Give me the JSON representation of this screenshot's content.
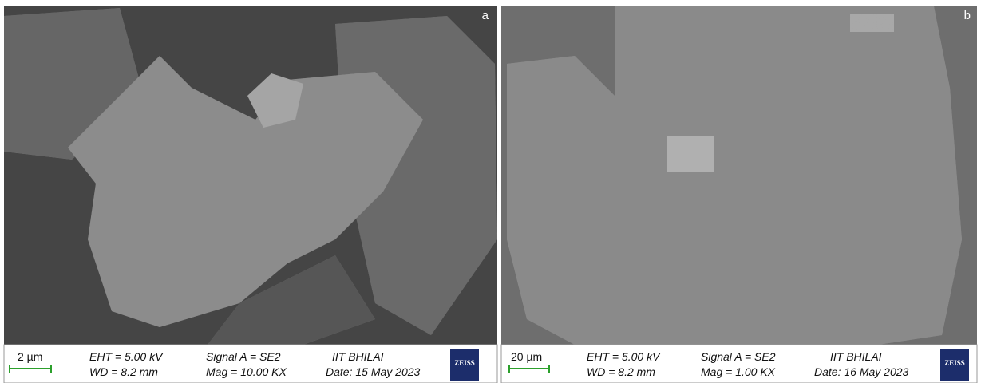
{
  "panels": [
    {
      "label": "a",
      "scale_bar": "2 µm",
      "eht": "EHT = 5.00 kV",
      "wd": "WD = 8.2 mm",
      "signal": "Signal A = SE2",
      "mag": "Mag = 10.00 KX",
      "institution": "IIT BHILAI",
      "date": "Date: 15 May 2023",
      "logo": "ZEISS"
    },
    {
      "label": "b",
      "scale_bar": "20 µm",
      "eht": "EHT = 5.00 kV",
      "wd": "WD = 8.2 mm",
      "signal": "Signal A = SE2",
      "mag": "Mag = 1.00 KX",
      "institution": "IIT BHILAI",
      "date": "Date: 16 May 2023",
      "logo": "ZEISS"
    }
  ]
}
